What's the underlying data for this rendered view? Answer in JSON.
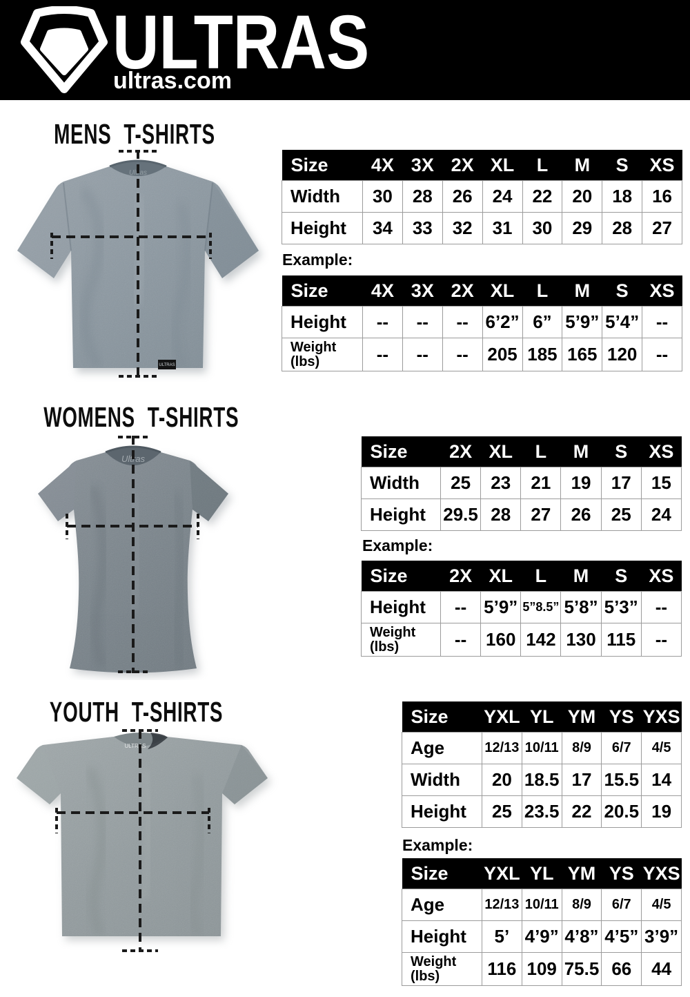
{
  "header": {
    "brand": "ULTRAS",
    "site": "ultras.com",
    "logo_icon": "ultras-shield-logo"
  },
  "colors": {
    "header_bg": "#000000",
    "table_header_bg": "#000000",
    "table_grid": "#9b9b9b",
    "mens_shirt": "#8c98a1",
    "womens_shirt": "#7a848b",
    "youth_shirt": "#939c9f",
    "measure_line": "#1a1a1a"
  },
  "sections": [
    {
      "id": "mens",
      "title": "MENS T-SHIRTS",
      "size_table": {
        "header": [
          "Size",
          "4X",
          "3X",
          "2X",
          "XL",
          "L",
          "M",
          "S",
          "XS"
        ],
        "rows": [
          {
            "label": "Width",
            "values": [
              "30",
              "28",
              "26",
              "24",
              "22",
              "20",
              "18",
              "16"
            ]
          },
          {
            "label": "Height",
            "values": [
              "34",
              "33",
              "32",
              "31",
              "30",
              "29",
              "28",
              "27"
            ]
          }
        ]
      },
      "example_label": "Example:",
      "example_table": {
        "header": [
          "Size",
          "4X",
          "3X",
          "2X",
          "XL",
          "L",
          "M",
          "S",
          "XS"
        ],
        "rows": [
          {
            "label": "Height",
            "values": [
              "--",
              "--",
              "--",
              "6’2”",
              "6”",
              "5’9”",
              "5’4”",
              "--"
            ]
          },
          {
            "label": "Weight\n(lbs)",
            "values": [
              "--",
              "--",
              "--",
              "205",
              "185",
              "165",
              "120",
              "--"
            ]
          }
        ]
      }
    },
    {
      "id": "womens",
      "title": "WOMENS T-SHIRTS",
      "size_table": {
        "header": [
          "Size",
          "2X",
          "XL",
          "L",
          "M",
          "S",
          "XS"
        ],
        "rows": [
          {
            "label": "Width",
            "values": [
              "25",
              "23",
              "21",
              "19",
              "17",
              "15"
            ]
          },
          {
            "label": "Height",
            "values": [
              "29.5",
              "28",
              "27",
              "26",
              "25",
              "24"
            ]
          }
        ]
      },
      "example_label": "Example:",
      "example_table": {
        "header": [
          "Size",
          "2X",
          "XL",
          "L",
          "M",
          "S",
          "XS"
        ],
        "rows": [
          {
            "label": "Height",
            "values": [
              "--",
              "5’9”",
              "5”8.5”",
              "5’8”",
              "5’3”",
              "--"
            ]
          },
          {
            "label": "Weight\n(lbs)",
            "values": [
              "--",
              "160",
              "142",
              "130",
              "115",
              "--"
            ]
          }
        ]
      }
    },
    {
      "id": "youth",
      "title": "YOUTH T-SHIRTS",
      "size_table": {
        "header": [
          "Size",
          "YXL",
          "YL",
          "YM",
          "YS",
          "YXS"
        ],
        "rows": [
          {
            "label": "Age",
            "values": [
              "12/13",
              "10/11",
              "8/9",
              "6/7",
              "4/5"
            ]
          },
          {
            "label": "Width",
            "values": [
              "20",
              "18.5",
              "17",
              "15.5",
              "14"
            ]
          },
          {
            "label": "Height",
            "values": [
              "25",
              "23.5",
              "22",
              "20.5",
              "19"
            ]
          }
        ]
      },
      "example_label": "Example:",
      "example_table": {
        "header": [
          "Size",
          "YXL",
          "YL",
          "YM",
          "YS",
          "YXS"
        ],
        "rows": [
          {
            "label": "Age",
            "values": [
              "12/13",
              "10/11",
              "8/9",
              "6/7",
              "4/5"
            ]
          },
          {
            "label": "Height",
            "values": [
              "5’",
              "4’9”",
              "4’8”",
              "4’5”",
              "3’9”"
            ]
          },
          {
            "label": "Weight\n(lbs)",
            "values": [
              "116",
              "109",
              "75.5",
              "66",
              "44"
            ]
          }
        ]
      }
    }
  ]
}
